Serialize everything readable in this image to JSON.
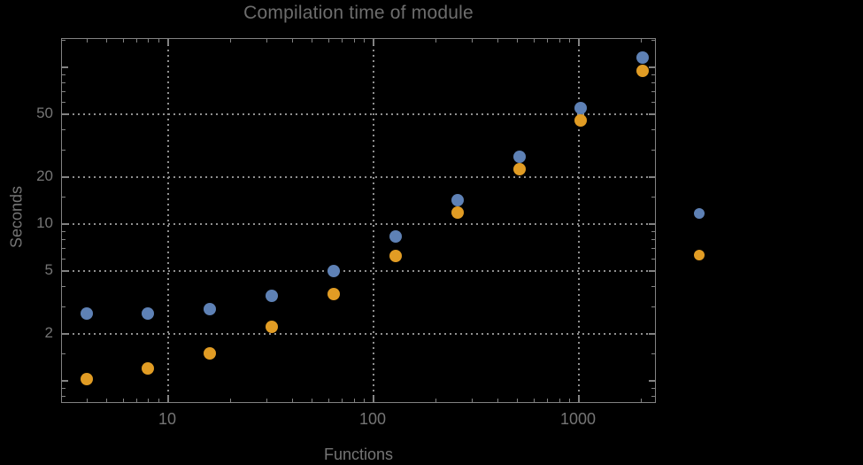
{
  "chart_data": {
    "type": "scatter",
    "title": "Compilation time of module",
    "xlabel": "Functions",
    "ylabel": "Seconds",
    "x_scale": "log",
    "y_scale": "log",
    "x_range": [
      3.04,
      2395
    ],
    "y_range": [
      0.713,
      151.7
    ],
    "grid": "dotted",
    "grid_color": "#8f8f8f",
    "frame_color": "#828282",
    "background_color": "#000000",
    "text_color": "#757575",
    "x_gridlines": [
      10,
      100,
      1000
    ],
    "y_gridlines": [
      2,
      5,
      10,
      20,
      50
    ],
    "x_major_ticks": [
      10,
      100,
      1000
    ],
    "x_major_tick_labels": [
      "10",
      "100",
      "1000"
    ],
    "x_minor_ticks": [
      4,
      5,
      6,
      7,
      8,
      9,
      20,
      30,
      40,
      50,
      60,
      70,
      80,
      90,
      200,
      300,
      400,
      500,
      600,
      700,
      800,
      900,
      2000
    ],
    "y_major_ticks": [
      2,
      5,
      10,
      20,
      50
    ],
    "y_major_tick_labels": [
      "2",
      "5",
      "10",
      "20",
      "50"
    ],
    "y_unlabeled_major_ticks": [
      1,
      100
    ],
    "y_minor_ticks": [
      0.8,
      0.9,
      1.5,
      3,
      4,
      6,
      7,
      8,
      9,
      15,
      30,
      40,
      60,
      70,
      80,
      90,
      150
    ],
    "x": [
      4,
      8,
      16,
      32,
      64,
      128,
      256,
      512,
      1024,
      2048
    ],
    "series": [
      {
        "name": "series-1-blue",
        "color": "#5E81B5",
        "y": [
          2.7,
          2.7,
          2.85,
          3.5,
          5.05,
          8.3,
          14.2,
          27,
          55,
          115
        ]
      },
      {
        "name": "series-2-orange",
        "color": "#E19C24",
        "y": [
          1.03,
          1.2,
          1.5,
          2.2,
          3.6,
          6.3,
          11.8,
          22.3,
          46,
          95
        ]
      }
    ],
    "legend": {
      "position": "outside-right",
      "markers": [
        {
          "series": "series-1-blue",
          "color": "#5E81B5",
          "label": ""
        },
        {
          "series": "series-2-orange",
          "color": "#E19C24",
          "label": ""
        }
      ]
    }
  }
}
